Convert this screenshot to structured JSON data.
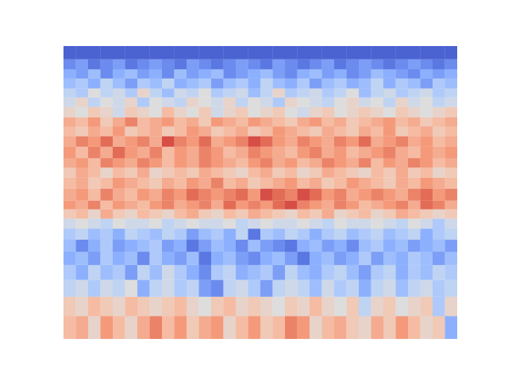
{
  "chart_data": {
    "type": "heatmap",
    "tick_labels": false,
    "log": "y",
    "xlim": [
      0,
      32
    ],
    "ylim": [
      20,
      204
    ],
    "y": [
      20,
      24,
      28,
      32,
      36,
      40,
      44,
      48,
      52,
      56,
      60,
      66,
      72,
      78,
      84,
      92,
      100,
      108,
      116,
      126,
      136,
      146,
      158,
      170,
      184,
      204
    ],
    "color_range": [
      -1,
      1
    ],
    "cells": [
      [
        0.3,
        0.4,
        0.1,
        0.5,
        0.3,
        0.1,
        0.4,
        0.6,
        0.3,
        0.5,
        0.2,
        0.4,
        0.5,
        0.1,
        0.3,
        0.5,
        0.2,
        0.3,
        0.6,
        0.5,
        0.1,
        0.3,
        0.4,
        0.2,
        0.1,
        0.4,
        0.2,
        0.5,
        0.3,
        0.1,
        0.2,
        -0.5
      ],
      [
        0.2,
        0.1,
        0.3,
        0.2,
        0.1,
        0.3,
        0.2,
        0.1,
        0.2,
        0.3,
        0.1,
        0.0,
        0.2,
        0.3,
        0.1,
        0.2,
        0.1,
        0.0,
        0.2,
        0.1,
        0.3,
        0.1,
        0.0,
        0.2,
        -0.2,
        0.1,
        0.2,
        0.0,
        0.1,
        0.2,
        -0.3,
        0.1
      ],
      [
        -0.2,
        -0.1,
        -0.3,
        -0.1,
        -0.2,
        0.0,
        -0.5,
        -0.2,
        -0.1,
        -0.3,
        -0.2,
        -0.6,
        -0.7,
        -0.2,
        -0.1,
        -0.3,
        -0.6,
        -0.2,
        -0.1,
        -0.2,
        -0.4,
        -0.1,
        -0.3,
        -0.2,
        -0.5,
        -0.2,
        -0.1,
        -0.4,
        -0.2,
        -0.1,
        -0.3,
        -0.2
      ],
      [
        -0.3,
        -0.5,
        -0.2,
        -0.4,
        -0.3,
        -0.6,
        -0.2,
        -0.4,
        -0.1,
        -0.3,
        -0.5,
        -0.7,
        -0.3,
        -0.2,
        -0.5,
        -0.4,
        -0.3,
        -0.6,
        -0.2,
        -0.4,
        -0.5,
        -0.3,
        -0.2,
        -0.4,
        -0.6,
        -0.3,
        -0.2,
        -0.5,
        -0.3,
        -0.4,
        -0.2,
        -0.3
      ],
      [
        -0.5,
        -0.4,
        -0.6,
        -0.3,
        -0.5,
        -0.4,
        -0.7,
        -0.3,
        -0.5,
        -0.6,
        -0.4,
        -0.8,
        -0.5,
        -0.4,
        -0.6,
        -0.7,
        -0.5,
        -0.4,
        -0.6,
        -0.8,
        -0.5,
        -0.4,
        -0.6,
        -0.5,
        -0.3,
        -0.6,
        -0.4,
        -0.5,
        -0.3,
        -0.4,
        -0.6,
        -0.4
      ],
      [
        -0.4,
        -0.7,
        -0.5,
        -0.3,
        -0.6,
        -0.5,
        -0.4,
        -0.3,
        -0.6,
        -0.5,
        -0.8,
        -0.6,
        -0.4,
        -0.5,
        -0.7,
        -0.4,
        -0.6,
        -0.7,
        -0.8,
        -0.5,
        -0.4,
        -0.6,
        -0.5,
        -0.7,
        -0.4,
        -0.3,
        -0.5,
        -0.4,
        -0.6,
        -0.5,
        -0.4,
        -0.6
      ],
      [
        -0.3,
        -0.2,
        -0.4,
        -0.3,
        -0.5,
        -0.2,
        -0.3,
        -0.4,
        -0.2,
        -0.3,
        -0.6,
        -0.4,
        -0.3,
        -0.5,
        -0.2,
        -0.8,
        -0.3,
        -0.4,
        -0.2,
        -0.3,
        -0.5,
        -0.3,
        -0.2,
        -0.4,
        -0.3,
        -0.2,
        -0.4,
        -0.3,
        -0.2,
        -0.5,
        -0.3,
        -0.2
      ],
      [
        -0.1,
        0.0,
        -0.1,
        -0.2,
        0.0,
        -0.1,
        -0.1,
        0.0,
        -0.2,
        -0.1,
        0.0,
        -0.1,
        -0.1,
        0.0,
        -0.2,
        -0.1,
        0.0,
        -0.1,
        -0.1,
        0.0,
        -0.1,
        -0.2,
        0.0,
        -0.1,
        -0.1,
        0.0,
        -0.1,
        -0.2,
        0.0,
        -0.1,
        -0.3,
        -0.1
      ],
      [
        0.2,
        0.3,
        0.1,
        0.4,
        0.2,
        0.1,
        0.3,
        0.2,
        0.1,
        0.3,
        0.4,
        0.2,
        0.1,
        0.3,
        0.2,
        0.4,
        0.3,
        0.2,
        0.1,
        0.3,
        0.2,
        0.4,
        0.1,
        0.2,
        0.3,
        0.1,
        0.2,
        0.4,
        0.3,
        0.2,
        0.1,
        0.2
      ],
      [
        0.5,
        0.4,
        0.6,
        0.3,
        0.5,
        0.4,
        0.3,
        0.5,
        0.6,
        0.4,
        0.5,
        0.6,
        0.4,
        0.7,
        0.5,
        0.6,
        0.5,
        0.7,
        0.8,
        0.6,
        0.5,
        0.4,
        0.6,
        0.5,
        0.3,
        0.4,
        0.5,
        0.6,
        0.4,
        0.7,
        0.6,
        0.4
      ],
      [
        0.4,
        0.5,
        0.3,
        0.6,
        0.4,
        0.3,
        0.5,
        0.4,
        0.6,
        0.5,
        0.7,
        0.6,
        0.5,
        0.6,
        0.7,
        0.5,
        0.8,
        0.7,
        0.6,
        0.8,
        0.7,
        0.5,
        0.6,
        0.4,
        0.5,
        0.6,
        0.5,
        0.4,
        0.6,
        0.7,
        0.5,
        0.6
      ],
      [
        0.3,
        0.4,
        0.2,
        0.3,
        0.5,
        0.4,
        0.3,
        0.2,
        0.4,
        0.3,
        0.5,
        0.4,
        0.6,
        0.3,
        0.4,
        0.2,
        0.3,
        0.4,
        0.5,
        0.3,
        0.4,
        0.2,
        0.3,
        0.5,
        0.4,
        0.3,
        0.2,
        0.4,
        0.3,
        0.5,
        0.4,
        0.3
      ],
      [
        0.2,
        0.4,
        0.3,
        0.1,
        0.3,
        0.2,
        0.4,
        0.1,
        0.2,
        0.3,
        0.2,
        0.4,
        0.3,
        0.2,
        0.1,
        0.3,
        0.4,
        0.2,
        0.3,
        0.1,
        0.2,
        0.4,
        0.3,
        0.2,
        0.1,
        0.3,
        0.2,
        0.4,
        0.2,
        0.3,
        0.1,
        0.2
      ],
      [
        0.4,
        0.5,
        0.3,
        0.6,
        0.5,
        0.4,
        0.6,
        0.5,
        0.3,
        0.5,
        0.4,
        0.6,
        0.5,
        0.4,
        0.3,
        0.5,
        0.6,
        0.4,
        0.5,
        0.3,
        0.4,
        0.6,
        0.5,
        0.4,
        0.6,
        0.3,
        0.5,
        0.4,
        0.6,
        0.5,
        0.3,
        0.4
      ],
      [
        0.5,
        0.3,
        0.6,
        0.4,
        0.7,
        0.5,
        0.4,
        0.6,
        0.3,
        0.5,
        0.4,
        0.6,
        0.5,
        0.3,
        0.4,
        0.6,
        0.5,
        0.4,
        0.3,
        0.5,
        0.6,
        0.4,
        0.5,
        0.3,
        0.4,
        0.5,
        0.6,
        0.4,
        0.3,
        0.5,
        0.4,
        0.5
      ],
      [
        0.4,
        0.6,
        0.5,
        0.7,
        0.4,
        0.5,
        0.6,
        0.4,
        0.8,
        0.6,
        0.5,
        0.7,
        0.4,
        0.5,
        0.6,
        0.8,
        0.7,
        0.5,
        0.4,
        0.6,
        0.5,
        0.4,
        0.6,
        0.5,
        0.7,
        0.4,
        0.5,
        0.6,
        0.4,
        0.5,
        0.3,
        0.4
      ],
      [
        0.3,
        0.2,
        0.4,
        0.3,
        0.5,
        0.2,
        0.3,
        0.4,
        0.2,
        0.3,
        0.5,
        0.4,
        0.2,
        0.3,
        0.4,
        0.2,
        0.3,
        0.5,
        0.4,
        0.3,
        0.2,
        0.4,
        0.3,
        0.2,
        0.4,
        0.3,
        0.5,
        0.2,
        0.3,
        0.4,
        0.2,
        0.3
      ],
      [
        0.4,
        0.3,
        0.5,
        0.2,
        0.4,
        0.6,
        0.3,
        0.4,
        0.5,
        0.3,
        0.4,
        0.2,
        0.5,
        0.4,
        0.3,
        0.5,
        0.4,
        0.3,
        0.2,
        0.4,
        0.5,
        0.3,
        0.4,
        0.2,
        0.3,
        0.4,
        0.5,
        0.3,
        0.4,
        0.2,
        0.3,
        0.4
      ],
      [
        0.1,
        0.0,
        0.2,
        0.1,
        -0.1,
        0.2,
        0.1,
        0.0,
        0.3,
        0.1,
        0.0,
        0.2,
        -0.1,
        0.1,
        0.2,
        0.0,
        0.1,
        0.2,
        0.0,
        -0.1,
        0.1,
        0.2,
        0.0,
        0.1,
        0.2,
        0.1,
        0.0,
        0.2,
        0.1,
        0.0,
        0.1,
        0.2
      ],
      [
        -0.1,
        0.1,
        -0.2,
        0.0,
        -0.1,
        0.1,
        -0.3,
        0.0,
        -0.1,
        -0.2,
        0.1,
        0.0,
        -0.1,
        0.1,
        -0.2,
        0.0,
        -0.1,
        -0.3,
        0.1,
        0.0,
        -0.1,
        -0.2,
        0.0,
        0.1,
        -0.1,
        0.0,
        -0.2,
        0.1,
        -0.1,
        0.0,
        -0.2,
        -0.1
      ],
      [
        -0.2,
        -0.3,
        0.0,
        -0.2,
        -0.1,
        -0.3,
        0.1,
        -0.2,
        -0.4,
        -0.1,
        -0.2,
        0.0,
        -0.3,
        -0.2,
        -0.1,
        -0.4,
        -0.2,
        0.1,
        -0.3,
        -0.2,
        -0.1,
        -0.3,
        -0.2,
        0.0,
        -0.4,
        -0.2,
        -0.1,
        -0.3,
        -0.2,
        -0.1,
        -0.3,
        -0.2
      ],
      [
        -0.4,
        -0.3,
        -0.5,
        -0.2,
        -0.4,
        -0.6,
        -0.3,
        -0.4,
        -0.2,
        -0.5,
        -0.4,
        -0.3,
        -0.6,
        -0.4,
        -0.3,
        -0.5,
        -0.2,
        -0.4,
        -0.5,
        -0.3,
        -0.6,
        -0.4,
        -0.3,
        -0.5,
        -0.4,
        -0.2,
        -0.5,
        -0.3,
        -0.4,
        -0.6,
        -0.3,
        -0.4
      ],
      [
        -0.5,
        -0.6,
        -0.4,
        -0.7,
        -0.5,
        -0.4,
        -0.6,
        -0.5,
        -0.7,
        -0.4,
        -0.6,
        -0.5,
        -0.4,
        -0.7,
        -0.6,
        -0.5,
        -0.4,
        -0.6,
        -0.7,
        -0.5,
        -0.4,
        -0.6,
        -0.5,
        -0.7,
        -0.6,
        -0.4,
        -0.5,
        -0.6,
        -0.7,
        -0.5,
        -0.6,
        -0.5
      ],
      [
        -0.7,
        -0.6,
        -0.8,
        -0.7,
        -0.6,
        -0.8,
        -0.7,
        -0.6,
        -0.7,
        -0.8,
        -0.6,
        -0.7,
        -0.8,
        -0.7,
        -0.6,
        -0.7,
        -0.8,
        -0.6,
        -0.7,
        -0.8,
        -0.7,
        -0.6,
        -0.8,
        -0.7,
        -0.6,
        -0.7,
        -0.8,
        -0.7,
        -0.6,
        -0.7,
        -0.8,
        -0.7
      ],
      [
        -0.9,
        -0.9,
        -0.9,
        -0.9,
        -0.9,
        -0.9,
        -0.9,
        -0.9,
        -0.9,
        -0.9,
        -0.9,
        -0.9,
        -0.9,
        -0.9,
        -0.9,
        -0.9,
        -0.9,
        -0.9,
        -0.9,
        -0.9,
        -0.9,
        -0.9,
        -0.9,
        -0.9,
        -0.9,
        -0.9,
        -0.9,
        -0.9,
        -0.9,
        -0.9,
        -0.9,
        -0.9
      ]
    ]
  }
}
